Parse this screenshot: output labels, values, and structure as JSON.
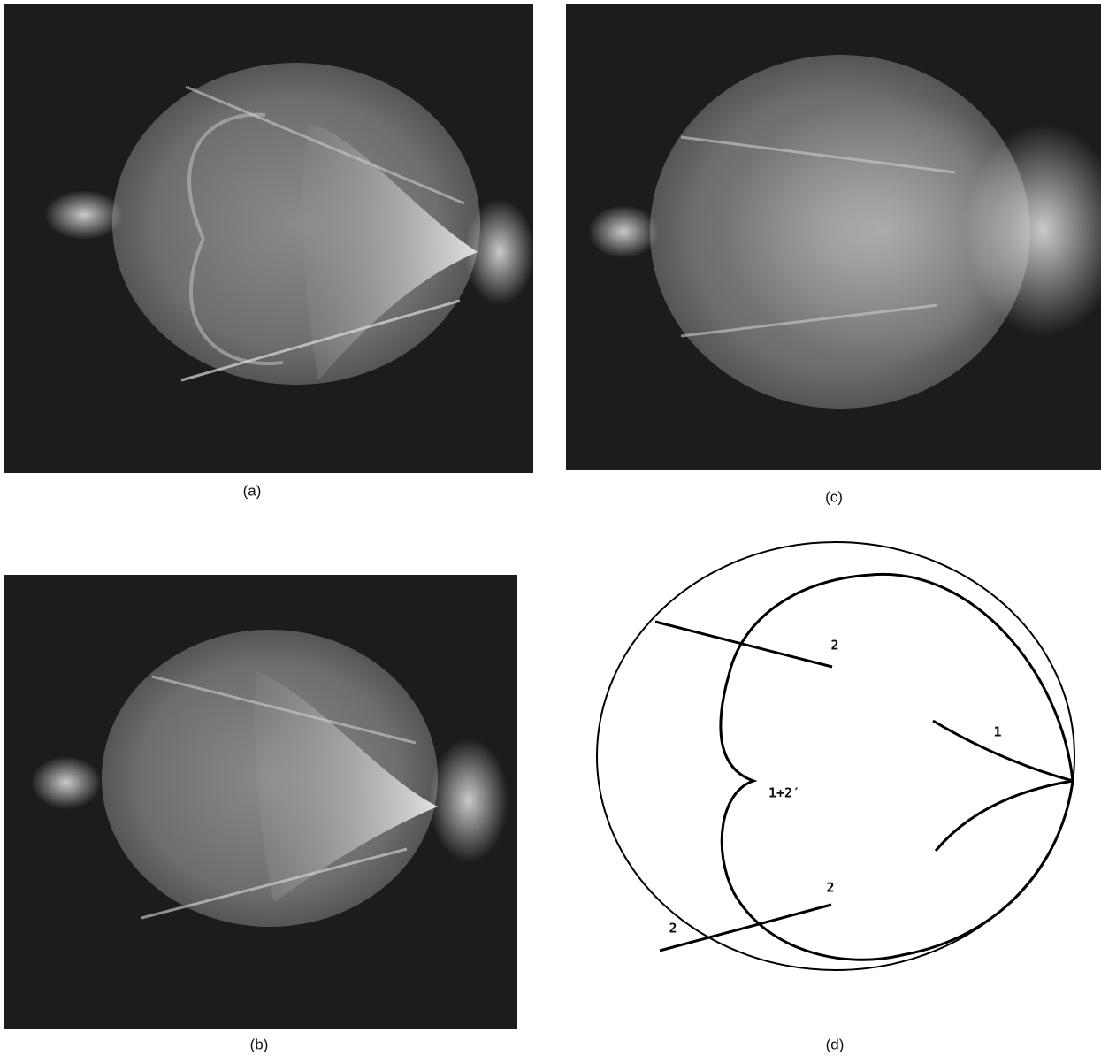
{
  "panels": [
    {
      "label": "(a)"
    },
    {
      "label": "(b)"
    },
    {
      "label": "(c)"
    },
    {
      "label": "(d)"
    }
  ],
  "diagram": {
    "labels": [
      "2",
      "1",
      "1+2′",
      "2",
      "2"
    ]
  }
}
